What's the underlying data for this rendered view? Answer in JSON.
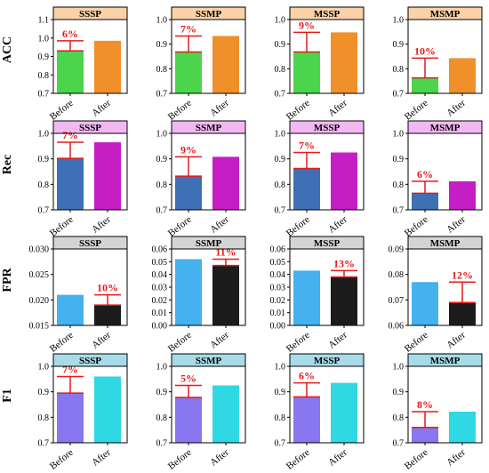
{
  "chart_data": [
    {
      "type": "bar",
      "row": "ACC",
      "title": "SSSP",
      "categories": [
        "Before",
        "After"
      ],
      "values": [
        0.93,
        0.985
      ],
      "improvement_label": "6%",
      "ylim": [
        0.7,
        1.1
      ],
      "yticks": [
        "0.7",
        "0.8",
        "0.9",
        "1.0",
        "1.1"
      ],
      "colors": [
        "#4cd44c",
        "#f0902a"
      ],
      "header_color": "#f9d2a8"
    },
    {
      "type": "bar",
      "row": "ACC",
      "title": "SSMP",
      "categories": [
        "Before",
        "After"
      ],
      "values": [
        0.868,
        0.933
      ],
      "improvement_label": "7%",
      "ylim": [
        0.7,
        1.0
      ],
      "yticks": [
        "0.7",
        "0.8",
        "0.9",
        "1.0"
      ],
      "colors": [
        "#4cd44c",
        "#f0902a"
      ],
      "header_color": "#f9d2a8"
    },
    {
      "type": "bar",
      "row": "ACC",
      "title": "MSSP",
      "categories": [
        "Before",
        "After"
      ],
      "values": [
        0.868,
        0.948
      ],
      "improvement_label": "9%",
      "ylim": [
        0.7,
        1.0
      ],
      "yticks": [
        "0.7",
        "0.8",
        "0.9",
        "1.0"
      ],
      "colors": [
        "#4cd44c",
        "#f0902a"
      ],
      "header_color": "#f9d2a8"
    },
    {
      "type": "bar",
      "row": "ACC",
      "title": "MSMP",
      "categories": [
        "Before",
        "After"
      ],
      "values": [
        0.763,
        0.843
      ],
      "improvement_label": "10%",
      "ylim": [
        0.7,
        1.0
      ],
      "yticks": [
        "0.7",
        "0.8",
        "0.9",
        "1.0"
      ],
      "colors": [
        "#4cd44c",
        "#f0902a"
      ],
      "header_color": "#f9d2a8"
    },
    {
      "type": "bar",
      "row": "Rec",
      "title": "SSSP",
      "categories": [
        "Before",
        "After"
      ],
      "values": [
        0.902,
        0.965
      ],
      "improvement_label": "7%",
      "ylim": [
        0.7,
        1.0
      ],
      "yticks": [
        "0.7",
        "0.8",
        "0.9",
        "1.0"
      ],
      "colors": [
        "#3f6fb5",
        "#c41ec4"
      ],
      "header_color": "#f2b8f2"
    },
    {
      "type": "bar",
      "row": "Rec",
      "title": "SSMP",
      "categories": [
        "Before",
        "After"
      ],
      "values": [
        0.832,
        0.908
      ],
      "improvement_label": "9%",
      "ylim": [
        0.7,
        1.0
      ],
      "yticks": [
        "0.7",
        "0.8",
        "0.9",
        "1.0"
      ],
      "colors": [
        "#3f6fb5",
        "#c41ec4"
      ],
      "header_color": "#f2b8f2"
    },
    {
      "type": "bar",
      "row": "Rec",
      "title": "MSSP",
      "categories": [
        "Before",
        "After"
      ],
      "values": [
        0.862,
        0.925
      ],
      "improvement_label": "7%",
      "ylim": [
        0.7,
        1.0
      ],
      "yticks": [
        "0.7",
        "0.8",
        "0.9",
        "1.0"
      ],
      "colors": [
        "#3f6fb5",
        "#c41ec4"
      ],
      "header_color": "#f2b8f2"
    },
    {
      "type": "bar",
      "row": "Rec",
      "title": "MSMP",
      "categories": [
        "Before",
        "After"
      ],
      "values": [
        0.765,
        0.812
      ],
      "improvement_label": "6%",
      "ylim": [
        0.7,
        1.0
      ],
      "yticks": [
        "0.7",
        "0.8",
        "0.9",
        "1.0"
      ],
      "colors": [
        "#3f6fb5",
        "#c41ec4"
      ],
      "header_color": "#f2b8f2"
    },
    {
      "type": "bar",
      "row": "FPR",
      "title": "SSSP",
      "categories": [
        "Before",
        "After"
      ],
      "values": [
        0.021,
        0.019
      ],
      "improvement_label": "10%",
      "ylim": [
        0.015,
        0.03
      ],
      "yticks": [
        "0.015",
        "0.020",
        "0.025",
        "0.030"
      ],
      "colors": [
        "#45b1ee",
        "#1c1c1c"
      ],
      "header_color": "#d4d4d4"
    },
    {
      "type": "bar",
      "row": "FPR",
      "title": "SSMP",
      "categories": [
        "Before",
        "After"
      ],
      "values": [
        0.052,
        0.047
      ],
      "improvement_label": "11%",
      "ylim": [
        0.0,
        0.06
      ],
      "yticks": [
        "0.00",
        "0.01",
        "0.02",
        "0.03",
        "0.04",
        "0.05",
        "0.06"
      ],
      "colors": [
        "#45b1ee",
        "#1c1c1c"
      ],
      "header_color": "#d4d4d4"
    },
    {
      "type": "bar",
      "row": "FPR",
      "title": "MSSP",
      "categories": [
        "Before",
        "After"
      ],
      "values": [
        0.043,
        0.038
      ],
      "improvement_label": "13%",
      "ylim": [
        0.0,
        0.06
      ],
      "yticks": [
        "0.00",
        "0.01",
        "0.02",
        "0.03",
        "0.04",
        "0.05",
        "0.06"
      ],
      "colors": [
        "#45b1ee",
        "#1c1c1c"
      ],
      "header_color": "#d4d4d4"
    },
    {
      "type": "bar",
      "row": "FPR",
      "title": "MSMP",
      "categories": [
        "Before",
        "After"
      ],
      "values": [
        0.077,
        0.069
      ],
      "improvement_label": "12%",
      "ylim": [
        0.06,
        0.09
      ],
      "yticks": [
        "0.06",
        "0.07",
        "0.08",
        "0.09"
      ],
      "colors": [
        "#45b1ee",
        "#1c1c1c"
      ],
      "header_color": "#d4d4d4"
    },
    {
      "type": "bar",
      "row": "F1",
      "title": "SSSP",
      "categories": [
        "Before",
        "After"
      ],
      "values": [
        0.895,
        0.96
      ],
      "improvement_label": "7%",
      "ylim": [
        0.7,
        1.0
      ],
      "yticks": [
        "0.7",
        "0.8",
        "0.9",
        "1.0"
      ],
      "colors": [
        "#8877ee",
        "#2fd8e3"
      ],
      "header_color": "#a8dbe8"
    },
    {
      "type": "bar",
      "row": "F1",
      "title": "SSMP",
      "categories": [
        "Before",
        "After"
      ],
      "values": [
        0.878,
        0.925
      ],
      "improvement_label": "5%",
      "ylim": [
        0.7,
        1.0
      ],
      "yticks": [
        "0.7",
        "0.8",
        "0.9",
        "1.0"
      ],
      "colors": [
        "#8877ee",
        "#2fd8e3"
      ],
      "header_color": "#a8dbe8"
    },
    {
      "type": "bar",
      "row": "F1",
      "title": "MSSP",
      "categories": [
        "Before",
        "After"
      ],
      "values": [
        0.88,
        0.935
      ],
      "improvement_label": "6%",
      "ylim": [
        0.7,
        1.0
      ],
      "yticks": [
        "0.7",
        "0.8",
        "0.9",
        "1.0"
      ],
      "colors": [
        "#8877ee",
        "#2fd8e3"
      ],
      "header_color": "#a8dbe8"
    },
    {
      "type": "bar",
      "row": "F1",
      "title": "MSMP",
      "categories": [
        "Before",
        "After"
      ],
      "values": [
        0.76,
        0.822
      ],
      "improvement_label": "8%",
      "ylim": [
        0.7,
        1.0
      ],
      "yticks": [
        "0.7",
        "0.8",
        "0.9",
        "1.0"
      ],
      "colors": [
        "#8877ee",
        "#2fd8e3"
      ],
      "header_color": "#a8dbe8"
    }
  ],
  "row_labels": [
    "ACC",
    "Rec",
    "FPR",
    "F1"
  ],
  "annotation_color": "#e41a1c"
}
